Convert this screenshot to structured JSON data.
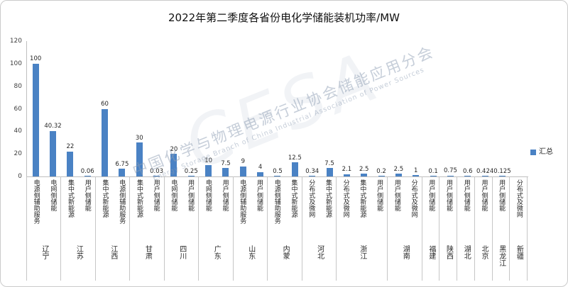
{
  "title": "2022年第二季度各省份电化学储能装机功率/MW",
  "legend": {
    "label": "汇总",
    "color": "#4a82c4"
  },
  "watermark": {
    "logo": "CESA",
    "cn": "中国化学与物理电源行业协会储能应用分会",
    "en": "Energy Storage Branch of China Industrial Association of Power Sources"
  },
  "chart_data": {
    "type": "bar",
    "title": "2022年第二季度各省份电化学储能装机功率/MW",
    "series_name": "汇总",
    "ylabel": "",
    "xlabel": "",
    "ylim": [
      0,
      120
    ],
    "yticks": [
      0,
      20,
      40,
      60,
      80,
      100,
      120
    ],
    "grid": false,
    "legend_position": "right",
    "groups": [
      {
        "province": "辽宁",
        "items": [
          {
            "label": "电源侧辅助服务",
            "value": 100
          },
          {
            "label": "电网侧储能",
            "value": 40.32
          }
        ]
      },
      {
        "province": "江苏",
        "items": [
          {
            "label": "集中式新能源",
            "value": 22
          },
          {
            "label": "用户侧储能",
            "value": 0.06
          }
        ]
      },
      {
        "province": "江西",
        "items": [
          {
            "label": "集中式新能源",
            "value": 60
          },
          {
            "label": "电源侧辅助服务",
            "value": 6.75
          }
        ]
      },
      {
        "province": "甘肃",
        "items": [
          {
            "label": "集中式新能源",
            "value": 30
          },
          {
            "label": "用户侧储能",
            "value": 0.03
          }
        ]
      },
      {
        "province": "四川",
        "items": [
          {
            "label": "电网侧储能",
            "value": 20
          },
          {
            "label": "用户侧储能",
            "value": 0.25
          }
        ]
      },
      {
        "province": "广东",
        "items": [
          {
            "label": "电网侧储能",
            "value": 10
          },
          {
            "label": "用户侧储能",
            "value": 7.5
          }
        ]
      },
      {
        "province": "山东",
        "items": [
          {
            "label": "电源侧辅助服务",
            "value": 9
          },
          {
            "label": "用户侧储能",
            "value": 4
          }
        ]
      },
      {
        "province": "内蒙",
        "items": [
          {
            "label": "电源侧辅助服务",
            "value": 0.5
          },
          {
            "label": "集中式新能源",
            "value": 12.5
          }
        ]
      },
      {
        "province": "河北",
        "items": [
          {
            "label": "分布式及微网",
            "value": 0.34
          },
          {
            "label": "集中式新能源",
            "value": 7.5
          }
        ]
      },
      {
        "province": "浙江",
        "items": [
          {
            "label": "分布式及微网",
            "value": 2.1
          },
          {
            "label": "集中式新能源",
            "value": 2.5
          },
          {
            "label": "用户侧储能",
            "value": 0.2
          }
        ]
      },
      {
        "province": "湖南",
        "items": [
          {
            "label": "用户侧储能",
            "value": 2.5
          },
          {
            "label": "分布式及微网",
            "value": 1
          }
        ]
      },
      {
        "province": "福建",
        "items": [
          {
            "label": "用户侧储能",
            "value": 0.1
          }
        ]
      },
      {
        "province": "陕西",
        "items": [
          {
            "label": "用户侧储能",
            "value": 0.75
          }
        ]
      },
      {
        "province": "湖北",
        "items": [
          {
            "label": "用户侧储能",
            "value": 0.6
          }
        ]
      },
      {
        "province": "北京",
        "items": [
          {
            "label": "用户侧储能",
            "value": 0.424
          }
        ]
      },
      {
        "province": "黑龙江",
        "items": [
          {
            "label": "用户侧储能",
            "value": 0.125
          }
        ]
      },
      {
        "province": "新疆",
        "items": [
          {
            "label": "分布式及微网",
            "value": null
          }
        ]
      }
    ]
  }
}
